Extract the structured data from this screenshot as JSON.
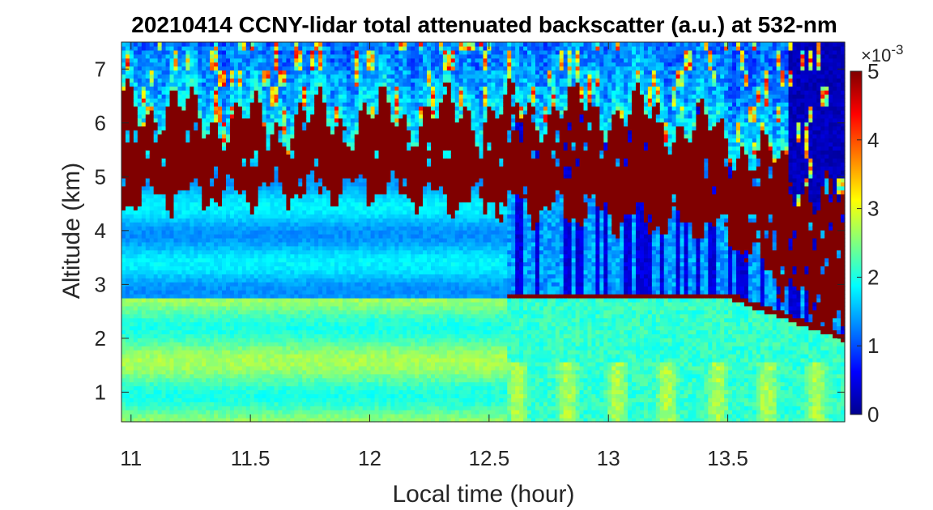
{
  "chart_data": {
    "type": "heatmap",
    "title": "20210414 CCNY-lidar total attenuated backscatter (a.u.) at 532-nm",
    "xlabel": "Local time (hour)",
    "ylabel": "Altitude (km)",
    "xlim": [
      10.96,
      13.99
    ],
    "ylim": [
      0.45,
      7.5
    ],
    "x_ticks": [
      "11",
      "11.5",
      "12",
      "12.5",
      "13",
      "13.5"
    ],
    "y_ticks": [
      "1",
      "2",
      "3",
      "4",
      "5",
      "6",
      "7"
    ],
    "colorbar": {
      "colormap": "jet",
      "clim": [
        0,
        5
      ],
      "ticks": [
        "0",
        "1",
        "2",
        "3",
        "4",
        "5"
      ],
      "exponent_label": "×10",
      "exponent_power": "-3"
    },
    "features": {
      "cloud_layer": {
        "base_km": [
          4.6,
          4.7,
          4.8,
          4.5,
          4.3,
          4.0,
          2.0
        ],
        "top_km": [
          6.4,
          6.0,
          6.1,
          6.2,
          6.3,
          5.8,
          4.4
        ],
        "value": 5.0
      },
      "boundary_layer_top_km": 2.8,
      "instrument_change_time": 12.58
    }
  }
}
